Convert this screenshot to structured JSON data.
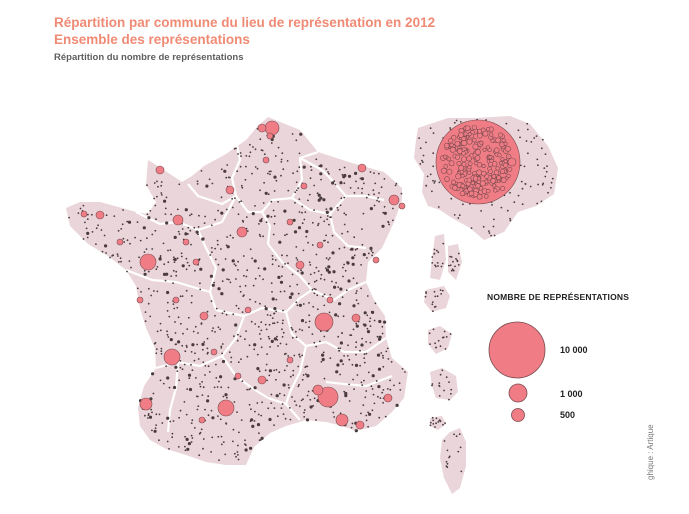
{
  "header": {
    "title_line1": "Répartition par commune du lieu de représentation en 2012",
    "title_line2": "Ensemble des représentations",
    "subtitle": "Répartition du nombre de représentations"
  },
  "legend": {
    "title": "NOMBRE DE REPRÉSENTATIONS",
    "entries": [
      {
        "label": "10 000",
        "value": 10000
      },
      {
        "label": "1 000",
        "value": 1000
      },
      {
        "label": "500",
        "value": 500
      }
    ]
  },
  "credit": "ghique : Artique",
  "colors": {
    "land": "#ead5da",
    "circle_fill": "#f07d86",
    "circle_stroke": "#7a4a4e",
    "dot": "#4a3b3d",
    "border": "#ffffff",
    "title": "#f08a74"
  }
}
